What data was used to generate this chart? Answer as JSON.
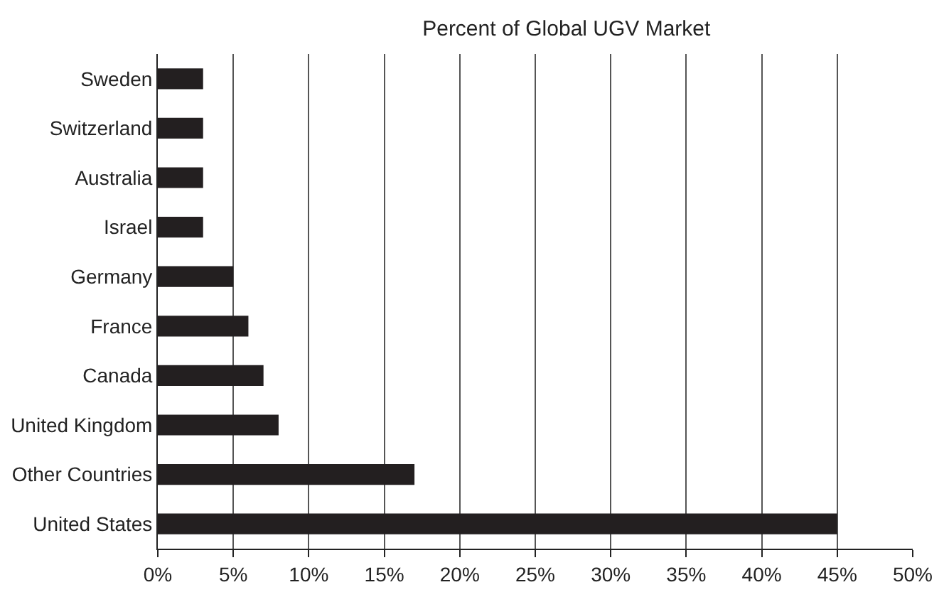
{
  "chart_data": {
    "type": "bar",
    "orientation": "horizontal",
    "title": "Percent of Global UGV Market",
    "categories": [
      "Sweden",
      "Switzerland",
      "Australia",
      "Israel",
      "Germany",
      "France",
      "Canada",
      "United Kingdom",
      "Other Countries",
      "United States"
    ],
    "values": [
      3,
      3,
      3,
      3,
      5,
      6,
      7,
      8,
      17,
      45
    ],
    "color": "#231f20",
    "xlim": [
      0,
      50
    ],
    "xticks": [
      {
        "value": 0,
        "label": "0%"
      },
      {
        "value": 5,
        "label": "5%"
      },
      {
        "value": 10,
        "label": "10%"
      },
      {
        "value": 15,
        "label": "15%"
      },
      {
        "value": 20,
        "label": "20%"
      },
      {
        "value": 25,
        "label": "25%"
      },
      {
        "value": 30,
        "label": "30%"
      },
      {
        "value": 35,
        "label": "35%"
      },
      {
        "value": 40,
        "label": "40%"
      },
      {
        "value": 45,
        "label": "45%"
      },
      {
        "value": 50,
        "label": "50%"
      }
    ],
    "grid": "x"
  }
}
